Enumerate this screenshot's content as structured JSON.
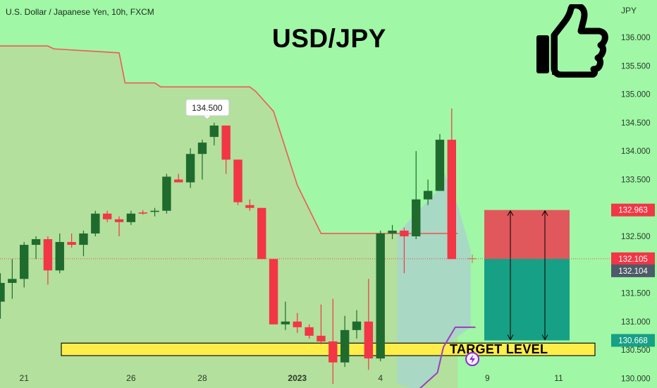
{
  "header": {
    "symbol_text": "U.S. Dollar / Japanese Yen, 10h, FXCM",
    "headline": "USD/JPY"
  },
  "annotations": {
    "target_level_label": "TARGET LEVEL",
    "high_label": "134.500",
    "thumbs_up_icon": "thumbs-up-icon",
    "lightning_icon": "lightning-icon"
  },
  "colors": {
    "background": "#a0f7a6",
    "up_candle": "#1f6b2e",
    "down_candle": "#f23645",
    "stop_zone": "#e0575c",
    "target_zone": "#16a085",
    "target_band": "#ffee4a",
    "trail_line": "#f05a55",
    "purple_line": "#9b3fbf"
  },
  "chart_data": {
    "type": "candlestick",
    "title": "USD/JPY",
    "subtitle": "U.S. Dollar / Japanese Yen, 10h, FXCM",
    "ylabel": "JPY",
    "ylim": [
      129.83,
      136.66
    ],
    "yticks": [
      "136.000",
      "135.500",
      "135.000",
      "134.500",
      "134.000",
      "133.500",
      "133.000",
      "132.500",
      "131.500",
      "131.000",
      "130.500",
      "130.000"
    ],
    "xticks": [
      {
        "label": "21",
        "index": 2
      },
      {
        "label": "26",
        "index": 11
      },
      {
        "label": "28",
        "index": 17
      },
      {
        "label": "2023",
        "index": 25,
        "bold": true
      },
      {
        "label": "4",
        "index": 32
      },
      {
        "label": "9",
        "index": 41
      },
      {
        "label": "11",
        "index": 47
      }
    ],
    "candles": [
      {
        "o": 131.35,
        "h": 131.85,
        "l": 131.05,
        "c": 131.68
      },
      {
        "o": 131.68,
        "h": 132.1,
        "l": 131.4,
        "c": 131.75
      },
      {
        "o": 131.75,
        "h": 132.4,
        "l": 131.6,
        "c": 132.35
      },
      {
        "o": 132.35,
        "h": 132.5,
        "l": 132.1,
        "c": 132.45
      },
      {
        "o": 132.45,
        "h": 132.5,
        "l": 131.65,
        "c": 131.9
      },
      {
        "o": 131.9,
        "h": 132.55,
        "l": 131.85,
        "c": 132.4
      },
      {
        "o": 132.4,
        "h": 132.55,
        "l": 132.3,
        "c": 132.35
      },
      {
        "o": 132.35,
        "h": 132.6,
        "l": 132.15,
        "c": 132.55
      },
      {
        "o": 132.55,
        "h": 132.95,
        "l": 132.5,
        "c": 132.9
      },
      {
        "o": 132.9,
        "h": 132.95,
        "l": 132.75,
        "c": 132.8
      },
      {
        "o": 132.8,
        "h": 132.85,
        "l": 132.5,
        "c": 132.75
      },
      {
        "o": 132.75,
        "h": 132.95,
        "l": 132.7,
        "c": 132.9
      },
      {
        "o": 132.92,
        "h": 132.96,
        "l": 132.88,
        "c": 132.9
      },
      {
        "o": 132.93,
        "h": 133.0,
        "l": 132.85,
        "c": 132.95
      },
      {
        "o": 132.95,
        "h": 133.6,
        "l": 132.9,
        "c": 133.55
      },
      {
        "o": 133.5,
        "h": 133.6,
        "l": 133.45,
        "c": 133.45
      },
      {
        "o": 133.45,
        "h": 134.05,
        "l": 133.35,
        "c": 133.95
      },
      {
        "o": 133.95,
        "h": 134.2,
        "l": 133.5,
        "c": 134.15
      },
      {
        "o": 134.25,
        "h": 134.5,
        "l": 134.1,
        "c": 134.45
      },
      {
        "o": 134.45,
        "h": 134.45,
        "l": 133.6,
        "c": 133.85
      },
      {
        "o": 133.85,
        "h": 133.85,
        "l": 133.05,
        "c": 133.1
      },
      {
        "o": 133.05,
        "h": 133.15,
        "l": 132.95,
        "c": 133.0
      },
      {
        "o": 133.0,
        "h": 133.0,
        "l": 132.1,
        "c": 132.1
      },
      {
        "o": 132.1,
        "h": 132.1,
        "l": 130.95,
        "c": 130.95
      },
      {
        "o": 130.95,
        "h": 131.35,
        "l": 130.85,
        "c": 131.0
      },
      {
        "o": 131.0,
        "h": 131.15,
        "l": 130.8,
        "c": 130.9
      },
      {
        "o": 130.9,
        "h": 130.95,
        "l": 130.7,
        "c": 130.75
      },
      {
        "o": 130.75,
        "h": 131.3,
        "l": 130.6,
        "c": 130.65
      },
      {
        "o": 130.65,
        "h": 131.4,
        "l": 129.9,
        "c": 130.28
      },
      {
        "o": 130.28,
        "h": 131.1,
        "l": 130.2,
        "c": 130.85
      },
      {
        "o": 130.85,
        "h": 131.2,
        "l": 130.7,
        "c": 131.0
      },
      {
        "o": 131.0,
        "h": 131.75,
        "l": 130.15,
        "c": 130.35
      },
      {
        "o": 130.35,
        "h": 132.6,
        "l": 130.3,
        "c": 132.55
      },
      {
        "o": 132.55,
        "h": 132.7,
        "l": 132.45,
        "c": 132.6
      },
      {
        "o": 132.6,
        "h": 132.65,
        "l": 131.85,
        "c": 132.5
      },
      {
        "o": 132.5,
        "h": 134.0,
        "l": 132.45,
        "c": 133.15
      },
      {
        "o": 133.15,
        "h": 133.5,
        "l": 133.05,
        "c": 133.3
      },
      {
        "o": 133.3,
        "h": 134.3,
        "l": 133.3,
        "c": 134.2
      },
      {
        "o": 134.2,
        "h": 134.75,
        "l": 132.1,
        "c": 132.1
      }
    ],
    "high_marker": {
      "index": 18,
      "value": 134.5,
      "label": "134.500"
    },
    "trailing_stop": [
      {
        "index": -1,
        "value": 135.85
      },
      {
        "index": 4,
        "value": 135.85
      },
      {
        "index": 4.5,
        "value": 135.8
      },
      {
        "index": 10,
        "value": 135.73
      },
      {
        "index": 10.5,
        "value": 135.2
      },
      {
        "index": 13,
        "value": 135.2
      },
      {
        "index": 13.5,
        "value": 135.13
      },
      {
        "index": 21,
        "value": 135.13
      },
      {
        "index": 21.5,
        "value": 135.05
      },
      {
        "index": 23,
        "value": 134.7
      },
      {
        "index": 25,
        "value": 133.4
      },
      {
        "index": 27,
        "value": 132.55
      },
      {
        "index": 38.5,
        "value": 132.55
      }
    ],
    "purple_line": [
      {
        "index": 35.2,
        "value": 129.8
      },
      {
        "index": 36.8,
        "value": 130.1
      },
      {
        "index": 37.3,
        "value": 130.55
      },
      {
        "index": 38.3,
        "value": 130.9
      },
      {
        "index": 40,
        "value": 130.9
      }
    ],
    "trade_zone": {
      "stop": 132.963,
      "entry": 132.105,
      "target": 130.668
    },
    "target_band": {
      "from": 130.4,
      "to": 130.62
    },
    "price_labels": [
      {
        "value": 132.963,
        "label": "132.963",
        "color": "#f23645"
      },
      {
        "value": 132.105,
        "label": "132.105",
        "color": "#f23645"
      },
      {
        "value": 132.104,
        "label": "132.104",
        "color": "#4d5a67"
      },
      {
        "value": 130.668,
        "label": "130.668",
        "color": "#16a085"
      }
    ]
  }
}
